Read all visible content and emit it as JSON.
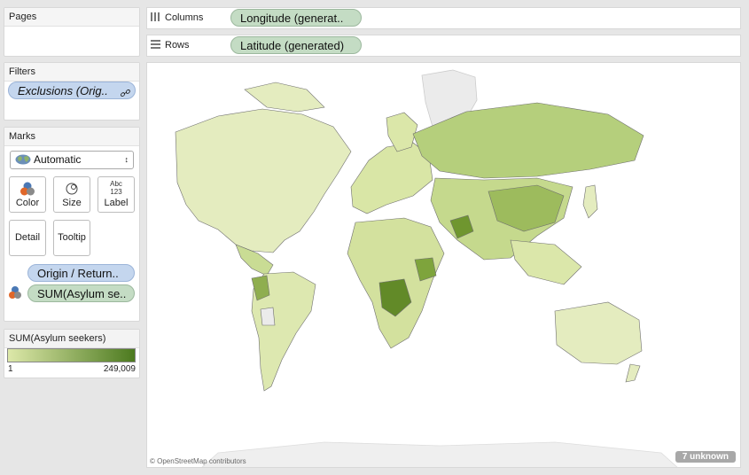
{
  "pages": {
    "title": "Pages"
  },
  "filters": {
    "title": "Filters",
    "pill": "Exclusions (Orig.."
  },
  "marks": {
    "title": "Marks",
    "type_selected": "Automatic",
    "buttons": {
      "color": "Color",
      "size": "Size",
      "label": "Label",
      "label_icon_text": "Abc\n123",
      "detail": "Detail",
      "tooltip": "Tooltip"
    },
    "fields": [
      "Origin / Return..",
      "SUM(Asylum se.."
    ]
  },
  "shelves": {
    "columns": {
      "label": "Columns",
      "pill": "Longitude (generat.."
    },
    "rows": {
      "label": "Rows",
      "pill": "Latitude (generated)"
    }
  },
  "legend": {
    "title": "SUM(Asylum seekers)",
    "min": "1",
    "max": "249,009",
    "color_low": "#dde8a9",
    "color_high": "#4c7a1f"
  },
  "map": {
    "attribution": "© OpenStreetMap contributors",
    "unknown_badge": "7 unknown"
  }
}
